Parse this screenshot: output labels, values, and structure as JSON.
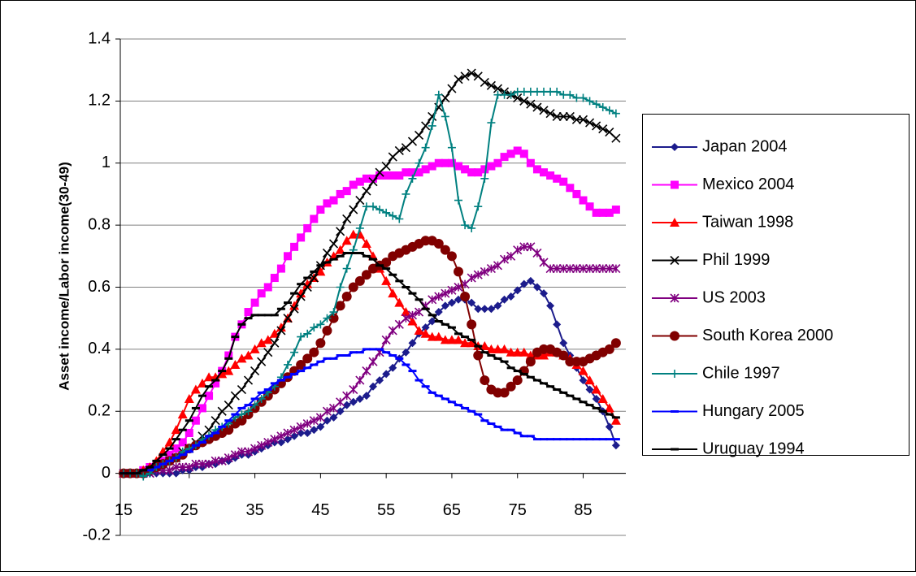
{
  "chart_data": {
    "type": "line",
    "y_label": "Asset income/Labor income(30-49)",
    "x": [
      15,
      16,
      17,
      18,
      19,
      20,
      21,
      22,
      23,
      24,
      25,
      26,
      27,
      28,
      29,
      30,
      31,
      32,
      33,
      34,
      35,
      36,
      37,
      38,
      39,
      40,
      41,
      42,
      43,
      44,
      45,
      46,
      47,
      48,
      49,
      50,
      51,
      52,
      53,
      54,
      55,
      56,
      57,
      58,
      59,
      60,
      61,
      62,
      63,
      64,
      65,
      66,
      67,
      68,
      69,
      70,
      71,
      72,
      73,
      74,
      75,
      76,
      77,
      78,
      79,
      80,
      81,
      82,
      83,
      84,
      85,
      86,
      87,
      88,
      89,
      90
    ],
    "xlim": [
      14.5,
      91.5
    ],
    "xticks": [
      15,
      25,
      35,
      45,
      55,
      65,
      75,
      85
    ],
    "ylim": [
      -0.2,
      1.4
    ],
    "yticks": [
      -0.2,
      0,
      0.2,
      0.4,
      0.6,
      0.8,
      1,
      1.2,
      1.4
    ],
    "grid": true,
    "legend": "right",
    "series": [
      {
        "name": "Japan 2004",
        "color": "#1c1c8c",
        "marker": "diamond",
        "values": [
          0,
          0,
          0,
          0,
          0,
          0,
          0,
          0,
          0,
          0.01,
          0.01,
          0.02,
          0.02,
          0.03,
          0.03,
          0.04,
          0.04,
          0.05,
          0.06,
          0.06,
          0.07,
          0.08,
          0.09,
          0.1,
          0.1,
          0.11,
          0.12,
          0.13,
          0.13,
          0.14,
          0.15,
          0.17,
          0.18,
          0.2,
          0.22,
          0.23,
          0.24,
          0.25,
          0.28,
          0.3,
          0.32,
          0.34,
          0.37,
          0.39,
          0.42,
          0.45,
          0.47,
          0.49,
          0.52,
          0.54,
          0.55,
          0.56,
          0.56,
          0.55,
          0.53,
          0.53,
          0.53,
          0.54,
          0.56,
          0.57,
          0.59,
          0.61,
          0.62,
          0.6,
          0.58,
          0.54,
          0.48,
          0.42,
          0.38,
          0.34,
          0.3,
          0.27,
          0.24,
          0.2,
          0.15,
          0.09
        ]
      },
      {
        "name": "Mexico 2004",
        "color": "#ff00ff",
        "marker": "square",
        "values": [
          0,
          0,
          0,
          0.01,
          0.02,
          0.03,
          0.04,
          0.06,
          0.08,
          0.1,
          0.13,
          0.17,
          0.21,
          0.25,
          0.29,
          0.33,
          0.38,
          0.44,
          0.48,
          0.52,
          0.55,
          0.58,
          0.6,
          0.63,
          0.66,
          0.7,
          0.73,
          0.76,
          0.79,
          0.82,
          0.85,
          0.87,
          0.88,
          0.9,
          0.91,
          0.93,
          0.94,
          0.95,
          0.95,
          0.96,
          0.96,
          0.96,
          0.96,
          0.97,
          0.97,
          0.97,
          0.98,
          0.99,
          1.0,
          1.0,
          1.0,
          0.99,
          0.98,
          0.97,
          0.97,
          0.98,
          0.99,
          1.0,
          1.02,
          1.03,
          1.04,
          1.03,
          1.0,
          0.98,
          0.97,
          0.96,
          0.95,
          0.94,
          0.92,
          0.9,
          0.88,
          0.86,
          0.84,
          0.84,
          0.84,
          0.85
        ]
      },
      {
        "name": "Taiwan 1998",
        "color": "#ff0000",
        "marker": "triangle",
        "values": [
          0,
          0,
          0,
          0.01,
          0.02,
          0.04,
          0.07,
          0.1,
          0.14,
          0.19,
          0.24,
          0.27,
          0.29,
          0.31,
          0.31,
          0.32,
          0.33,
          0.35,
          0.37,
          0.38,
          0.4,
          0.42,
          0.43,
          0.45,
          0.47,
          0.5,
          0.54,
          0.58,
          0.61,
          0.63,
          0.65,
          0.68,
          0.7,
          0.72,
          0.75,
          0.77,
          0.77,
          0.74,
          0.7,
          0.66,
          0.62,
          0.58,
          0.55,
          0.52,
          0.49,
          0.46,
          0.45,
          0.44,
          0.44,
          0.43,
          0.43,
          0.43,
          0.42,
          0.42,
          0.41,
          0.41,
          0.4,
          0.4,
          0.4,
          0.39,
          0.39,
          0.39,
          0.38,
          0.38,
          0.38,
          0.39,
          0.39,
          0.38,
          0.37,
          0.35,
          0.33,
          0.3,
          0.27,
          0.24,
          0.21,
          0.17
        ]
      },
      {
        "name": "Phil 1999",
        "color": "#000000",
        "marker": "x",
        "values": [
          0,
          0,
          0,
          0,
          0.01,
          0.02,
          0.03,
          0.04,
          0.05,
          0.07,
          0.08,
          0.1,
          0.12,
          0.14,
          0.17,
          0.2,
          0.22,
          0.25,
          0.27,
          0.3,
          0.33,
          0.36,
          0.39,
          0.42,
          0.46,
          0.5,
          0.53,
          0.57,
          0.6,
          0.63,
          0.67,
          0.71,
          0.74,
          0.78,
          0.82,
          0.85,
          0.88,
          0.91,
          0.94,
          0.97,
          0.99,
          1.02,
          1.04,
          1.05,
          1.07,
          1.09,
          1.12,
          1.15,
          1.18,
          1.21,
          1.24,
          1.27,
          1.28,
          1.29,
          1.28,
          1.26,
          1.25,
          1.24,
          1.23,
          1.22,
          1.21,
          1.2,
          1.19,
          1.18,
          1.17,
          1.16,
          1.15,
          1.15,
          1.15,
          1.14,
          1.14,
          1.13,
          1.12,
          1.11,
          1.1,
          1.08
        ]
      },
      {
        "name": "US 2003",
        "color": "#800080",
        "marker": "asterisk",
        "values": [
          0,
          0,
          0,
          0,
          0,
          0.01,
          0.01,
          0.01,
          0.02,
          0.02,
          0.02,
          0.03,
          0.03,
          0.03,
          0.04,
          0.04,
          0.05,
          0.06,
          0.07,
          0.07,
          0.08,
          0.09,
          0.1,
          0.11,
          0.12,
          0.13,
          0.14,
          0.15,
          0.16,
          0.17,
          0.18,
          0.2,
          0.21,
          0.23,
          0.25,
          0.27,
          0.3,
          0.33,
          0.36,
          0.39,
          0.43,
          0.46,
          0.48,
          0.5,
          0.51,
          0.52,
          0.54,
          0.56,
          0.57,
          0.58,
          0.59,
          0.6,
          0.61,
          0.63,
          0.64,
          0.65,
          0.66,
          0.67,
          0.69,
          0.7,
          0.72,
          0.73,
          0.73,
          0.71,
          0.68,
          0.66,
          0.66,
          0.66,
          0.66,
          0.66,
          0.66,
          0.66,
          0.66,
          0.66,
          0.66,
          0.66
        ]
      },
      {
        "name": "South Korea 2000",
        "color": "#800000",
        "marker": "circle",
        "values": [
          0,
          0,
          0,
          0,
          0.01,
          0.02,
          0.03,
          0.04,
          0.05,
          0.06,
          0.08,
          0.09,
          0.1,
          0.11,
          0.12,
          0.13,
          0.14,
          0.16,
          0.17,
          0.19,
          0.21,
          0.23,
          0.25,
          0.27,
          0.29,
          0.31,
          0.33,
          0.35,
          0.37,
          0.39,
          0.42,
          0.46,
          0.5,
          0.54,
          0.57,
          0.6,
          0.62,
          0.64,
          0.66,
          0.67,
          0.68,
          0.7,
          0.71,
          0.72,
          0.73,
          0.74,
          0.75,
          0.75,
          0.74,
          0.72,
          0.7,
          0.65,
          0.57,
          0.48,
          0.38,
          0.3,
          0.27,
          0.26,
          0.26,
          0.28,
          0.3,
          0.33,
          0.36,
          0.39,
          0.4,
          0.4,
          0.39,
          0.38,
          0.36,
          0.36,
          0.36,
          0.37,
          0.38,
          0.39,
          0.4,
          0.42
        ]
      },
      {
        "name": "Chile 1997",
        "color": "#008080",
        "marker": "plus",
        "values": [
          0,
          0,
          0,
          -0.01,
          0,
          0.02,
          0.03,
          0.04,
          0.05,
          0.07,
          0.08,
          0.09,
          0.11,
          0.12,
          0.14,
          0.15,
          0.16,
          0.18,
          0.19,
          0.2,
          0.22,
          0.24,
          0.26,
          0.28,
          0.31,
          0.35,
          0.39,
          0.44,
          0.45,
          0.47,
          0.48,
          0.5,
          0.52,
          0.6,
          0.66,
          0.72,
          0.79,
          0.86,
          0.86,
          0.85,
          0.84,
          0.83,
          0.82,
          0.9,
          0.95,
          1.0,
          1.05,
          1.12,
          1.22,
          1.15,
          1.05,
          0.88,
          0.8,
          0.79,
          0.86,
          0.95,
          1.13,
          1.22,
          1.22,
          1.22,
          1.23,
          1.23,
          1.23,
          1.23,
          1.23,
          1.23,
          1.23,
          1.22,
          1.22,
          1.21,
          1.21,
          1.2,
          1.19,
          1.18,
          1.17,
          1.16
        ]
      },
      {
        "name": "Hungary 2005",
        "color": "#0000ff",
        "marker": "dash",
        "values": [
          0,
          0,
          0,
          0.01,
          0.01,
          0.02,
          0.03,
          0.04,
          0.05,
          0.06,
          0.07,
          0.09,
          0.1,
          0.12,
          0.13,
          0.15,
          0.17,
          0.19,
          0.21,
          0.22,
          0.24,
          0.26,
          0.27,
          0.29,
          0.3,
          0.31,
          0.32,
          0.33,
          0.34,
          0.35,
          0.36,
          0.37,
          0.37,
          0.38,
          0.38,
          0.39,
          0.39,
          0.4,
          0.4,
          0.4,
          0.39,
          0.38,
          0.37,
          0.35,
          0.33,
          0.3,
          0.28,
          0.26,
          0.25,
          0.24,
          0.23,
          0.22,
          0.21,
          0.2,
          0.19,
          0.17,
          0.16,
          0.15,
          0.14,
          0.14,
          0.13,
          0.12,
          0.12,
          0.11,
          0.11,
          0.11,
          0.11,
          0.11,
          0.11,
          0.11,
          0.11,
          0.11,
          0.11,
          0.11,
          0.11,
          0.11
        ]
      },
      {
        "name": "Uruguay 1994",
        "color": "#000000",
        "marker": "dash",
        "values": [
          0,
          0,
          0,
          0.01,
          0.02,
          0.04,
          0.06,
          0.08,
          0.11,
          0.14,
          0.17,
          0.21,
          0.25,
          0.28,
          0.3,
          0.33,
          0.37,
          0.44,
          0.48,
          0.5,
          0.51,
          0.51,
          0.51,
          0.51,
          0.53,
          0.55,
          0.58,
          0.61,
          0.63,
          0.65,
          0.67,
          0.68,
          0.69,
          0.7,
          0.71,
          0.71,
          0.71,
          0.7,
          0.69,
          0.67,
          0.66,
          0.64,
          0.62,
          0.6,
          0.58,
          0.56,
          0.53,
          0.51,
          0.49,
          0.48,
          0.47,
          0.45,
          0.44,
          0.43,
          0.41,
          0.39,
          0.38,
          0.37,
          0.36,
          0.34,
          0.33,
          0.32,
          0.31,
          0.3,
          0.29,
          0.28,
          0.27,
          0.26,
          0.25,
          0.24,
          0.23,
          0.22,
          0.21,
          0.2,
          0.19,
          0.18
        ]
      }
    ]
  }
}
